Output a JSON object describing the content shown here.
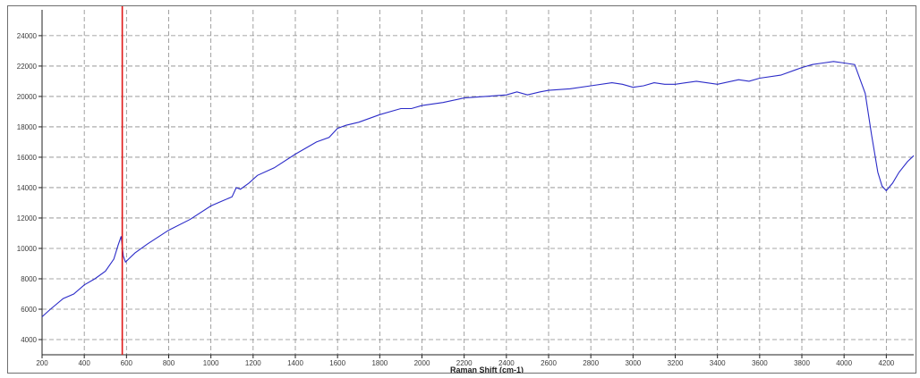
{
  "chart_data": {
    "type": "line",
    "title": "",
    "xlabel": "Raman Shift (cm-1)",
    "ylabel": "",
    "xlim": [
      200,
      4330
    ],
    "ylim": [
      3000,
      25700
    ],
    "grid": true,
    "legend": "none",
    "x_ticks": [
      200,
      400,
      600,
      800,
      1000,
      1200,
      1400,
      1600,
      1800,
      2000,
      2200,
      2400,
      2600,
      2800,
      3000,
      3200,
      3400,
      3600,
      3800,
      4000,
      4200
    ],
    "x_tick_labels": [
      "200",
      "400",
      "600",
      "800",
      "1000",
      "1200",
      "1400",
      "1600",
      "1800",
      "2000",
      "2200",
      "2400",
      "2600",
      "2800",
      "3000",
      "3200",
      "3400",
      "3600",
      "3800",
      "4000",
      "4200"
    ],
    "y_ticks": [
      4000,
      6000,
      8000,
      10000,
      12000,
      14000,
      16000,
      18000,
      20000,
      22000,
      24000
    ],
    "y_tick_labels": [
      "4000",
      "6000",
      "8000",
      "10000",
      "12000",
      "14000",
      "16000",
      "18000",
      "20000",
      "22000",
      "24000"
    ],
    "cursor_x": 580,
    "cursor_color": "#e01818",
    "series": [
      {
        "color": "#2b2bc8",
        "x": [
          200,
          240,
          300,
          350,
          400,
          450,
          500,
          540,
          560,
          575,
          585,
          595,
          610,
          640,
          700,
          800,
          900,
          1000,
          1050,
          1100,
          1120,
          1140,
          1180,
          1220,
          1300,
          1400,
          1500,
          1560,
          1600,
          1640,
          1700,
          1800,
          1900,
          1950,
          2000,
          2100,
          2200,
          2300,
          2400,
          2450,
          2500,
          2560,
          2600,
          2700,
          2800,
          2900,
          2950,
          3000,
          3050,
          3100,
          3150,
          3200,
          3300,
          3400,
          3500,
          3550,
          3600,
          3700,
          3800,
          3850,
          3900,
          3950,
          4000,
          4050,
          4100,
          4130,
          4160,
          4180,
          4200,
          4230,
          4260,
          4300,
          4330
        ],
        "y": [
          5500,
          6000,
          6700,
          7000,
          7600,
          8000,
          8500,
          9300,
          10200,
          10800,
          9500,
          9100,
          9300,
          9700,
          10300,
          11200,
          11900,
          12800,
          13100,
          13400,
          14000,
          13900,
          14300,
          14800,
          15300,
          16200,
          17000,
          17300,
          17900,
          18100,
          18300,
          18800,
          19200,
          19200,
          19400,
          19600,
          19900,
          20000,
          20100,
          20300,
          20100,
          20300,
          20400,
          20500,
          20700,
          20900,
          20800,
          20600,
          20700,
          20900,
          20800,
          20800,
          21000,
          20800,
          21100,
          21000,
          21200,
          21400,
          21900,
          22100,
          22200,
          22300,
          22200,
          22100,
          20200,
          17500,
          15000,
          14100,
          13800,
          14300,
          15000,
          15700,
          16100
        ]
      }
    ]
  }
}
